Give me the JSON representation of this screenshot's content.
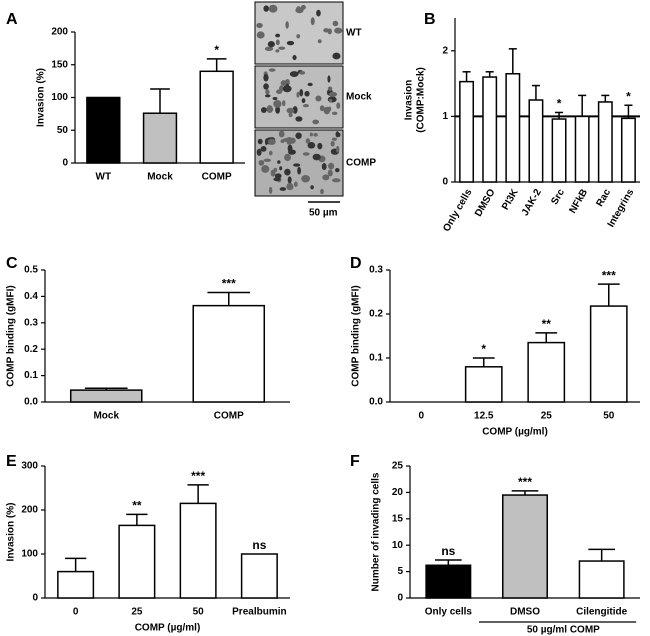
{
  "chart_data": [
    {
      "type": "bar",
      "panel": "A",
      "ylabel": [
        "Invasion (%)"
      ],
      "categories": [
        "WT",
        "Mock",
        "COMP"
      ],
      "values": [
        100,
        76,
        140
      ],
      "errors": [
        null,
        37,
        19
      ],
      "colors": [
        "#000000",
        "#c0c0c0",
        "#ffffff"
      ],
      "ylim": [
        0,
        200
      ],
      "yticks": [
        0,
        50,
        100,
        150,
        200
      ],
      "annotations": [
        null,
        null,
        "*"
      ],
      "image_labels": [
        "WT",
        "Mock",
        "COMP"
      ],
      "scale_bar": "50 µm"
    },
    {
      "type": "bar",
      "panel": "B",
      "ylabel": [
        "Invasion",
        "(COMP:Mock)"
      ],
      "categories": [
        "Only cells",
        "DMSO",
        "PI3K",
        "JAK-2",
        "Src",
        "NFkB",
        "Rac",
        "Integrins"
      ],
      "values": [
        1.53,
        1.6,
        1.65,
        1.25,
        0.96,
        1.0,
        1.22,
        0.97
      ],
      "errors": [
        0.15,
        0.08,
        0.38,
        0.22,
        0.1,
        0.32,
        0.1,
        0.2
      ],
      "colors": [
        "#ffffff",
        "#ffffff",
        "#ffffff",
        "#ffffff",
        "#ffffff",
        "#ffffff",
        "#ffffff",
        "#ffffff"
      ],
      "ylim": [
        0,
        2.5
      ],
      "yticks": [
        0,
        1,
        2
      ],
      "reference_line": 1,
      "annotations": [
        null,
        null,
        null,
        null,
        "*",
        null,
        null,
        "*"
      ]
    },
    {
      "type": "bar",
      "panel": "C",
      "ylabel": [
        "COMP binding (gMFI)"
      ],
      "categories": [
        "Mock",
        "COMP"
      ],
      "values": [
        0.045,
        0.365
      ],
      "errors": [
        0.007,
        0.05
      ],
      "colors": [
        "#c0c0c0",
        "#ffffff"
      ],
      "ylim": [
        0,
        0.5
      ],
      "yticks": [
        {
          "value": 0,
          "label": "0.0"
        },
        0.1,
        0.2,
        0.3,
        0.4,
        0.5
      ],
      "annotations": [
        null,
        "***"
      ]
    },
    {
      "type": "bar",
      "panel": "D",
      "ylabel": [
        "COMP binding (gMFI)"
      ],
      "xlabel": "COMP (µg/ml)",
      "categories": [
        "0",
        "12.5",
        "25",
        "50"
      ],
      "values": [
        0,
        0.08,
        0.135,
        0.218
      ],
      "errors": [
        null,
        0.02,
        0.022,
        0.05
      ],
      "colors": [
        "#ffffff",
        "#ffffff",
        "#ffffff",
        "#ffffff"
      ],
      "ylim": [
        0,
        0.3
      ],
      "yticks": [
        {
          "value": 0,
          "label": "0.0"
        },
        0.1,
        0.2,
        0.3
      ],
      "annotations": [
        null,
        "*",
        "**",
        "***"
      ]
    },
    {
      "type": "bar",
      "panel": "E",
      "ylabel": [
        "Invasion (%)"
      ],
      "xlabel": "COMP (µg/ml)",
      "categories": [
        "0",
        "25",
        "50",
        "Prealbumin"
      ],
      "values": [
        60,
        165,
        215,
        100
      ],
      "errors": [
        30,
        25,
        42,
        null
      ],
      "colors": [
        "#ffffff",
        "#ffffff",
        "#ffffff",
        "#ffffff"
      ],
      "ylim": [
        0,
        300
      ],
      "yticks": [
        0,
        100,
        200,
        300
      ],
      "annotations": [
        null,
        "**",
        "***",
        "ns"
      ]
    },
    {
      "type": "bar",
      "panel": "F",
      "ylabel": [
        "Number of invading cells"
      ],
      "categories": [
        "Only cells",
        "DMSO",
        "Cilengitide"
      ],
      "values": [
        6.2,
        19.5,
        7.0
      ],
      "errors": [
        1.0,
        0.8,
        2.2
      ],
      "colors": [
        "#000000",
        "#c0c0c0",
        "#ffffff"
      ],
      "ylim": [
        0,
        25
      ],
      "yticks": [
        0,
        5,
        10,
        15,
        20,
        25
      ],
      "annotations": [
        "ns",
        "***",
        null
      ],
      "group_label": "50 µg/ml COMP"
    }
  ]
}
